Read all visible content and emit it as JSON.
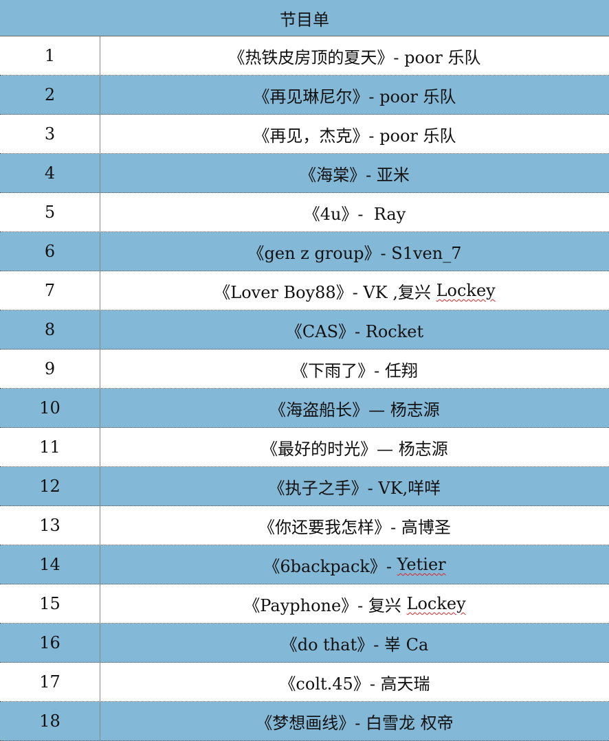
{
  "title": "节目单",
  "colors": {
    "header_bg": "#84b8d7",
    "alt_row_bg": "#84b8d7",
    "row_bg": "#ffffff"
  },
  "rows": [
    {
      "num": "1",
      "song": "《热铁皮房顶的夏天》- poor 乐队",
      "flag": ""
    },
    {
      "num": "2",
      "song": "《再见琳尼尔》- poor 乐队",
      "flag": ""
    },
    {
      "num": "3",
      "song": "《再见，杰克》- poor 乐队",
      "flag": ""
    },
    {
      "num": "4",
      "song": "《海棠》- 亚米",
      "flag": ""
    },
    {
      "num": "5",
      "song": "《4u》-  Ray",
      "flag": ""
    },
    {
      "num": "6",
      "song": "《gen z group》- S1ven_7",
      "flag": ""
    },
    {
      "num": "7",
      "song": "《Lover Boy88》- VK ,复兴 ",
      "flag": "Lockey"
    },
    {
      "num": "8",
      "song": "《CAS》- Rocket",
      "flag": ""
    },
    {
      "num": "9",
      "song": "《下雨了》- 任翔",
      "flag": ""
    },
    {
      "num": "10",
      "song": "《海盗船长》— 杨志源",
      "flag": ""
    },
    {
      "num": "11",
      "song": "《最好的时光》— 杨志源",
      "flag": ""
    },
    {
      "num": "12",
      "song": "《执子之手》- VK,咩咩",
      "flag": ""
    },
    {
      "num": "13",
      "song": "《你还要我怎样》- 高博圣",
      "flag": ""
    },
    {
      "num": "14",
      "song": "《6backpack》- ",
      "flag": "Yetier"
    },
    {
      "num": "15",
      "song": "《Payphone》- 复兴 ",
      "flag": "Lockey"
    },
    {
      "num": "16",
      "song": "《do that》- 峷 Ca",
      "flag": ""
    },
    {
      "num": "17",
      "song": "《colt.45》- 高天瑞",
      "flag": ""
    },
    {
      "num": "18",
      "song": "《梦想画线》- 白雪龙 权帝",
      "flag": ""
    }
  ]
}
